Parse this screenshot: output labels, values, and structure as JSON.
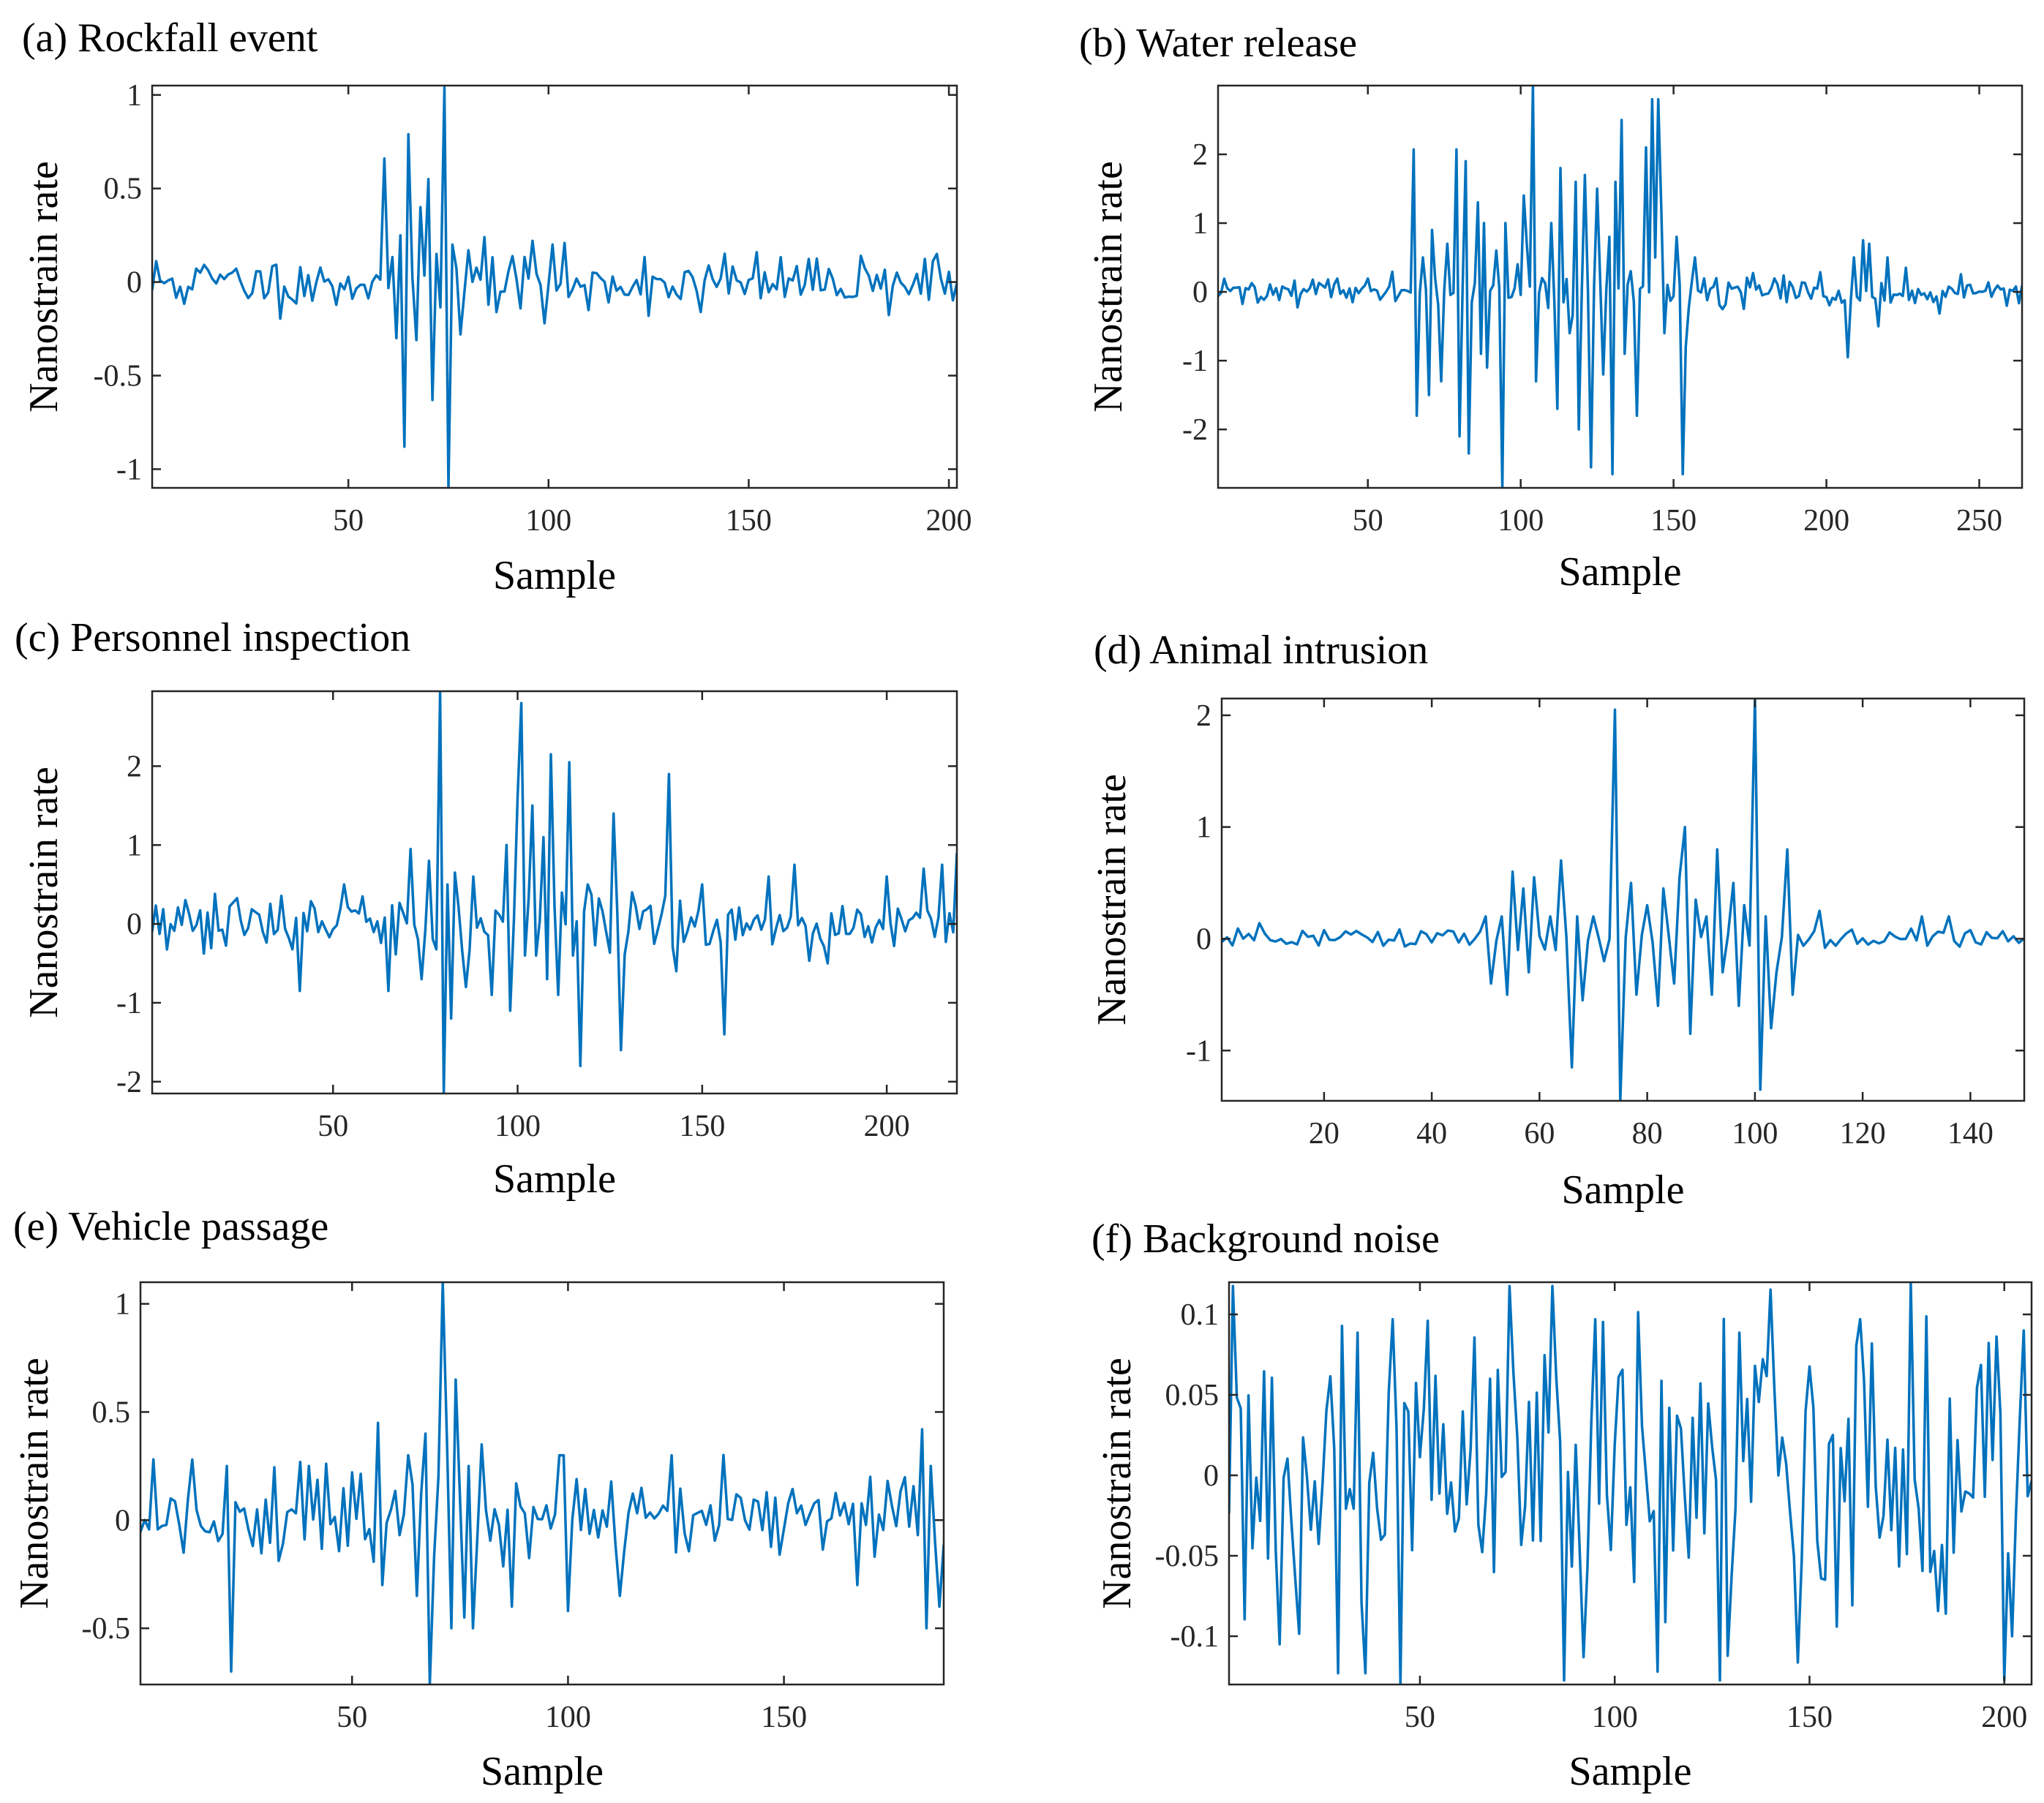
{
  "figure": {
    "line_color": "#0072BD",
    "axis_color": "#262626"
  },
  "chart_data": [
    {
      "type": "line",
      "panel": "a",
      "title": "(a) Rockfall event",
      "xlabel": "Sample",
      "ylabel": "Nanostrain rate",
      "xlim": [
        1,
        202
      ],
      "ylim": [
        -1.1,
        1.05
      ],
      "xticks": [
        50,
        100,
        150,
        200
      ],
      "yticks": [
        -1,
        -0.5,
        0,
        0.5,
        1
      ],
      "ytick_labels": [
        "-1",
        "-0.5",
        "0",
        "0.5",
        "1"
      ],
      "seed": 11,
      "length": 202,
      "noise": 0.08,
      "spikes": [
        [
          59,
          0.66
        ],
        [
          62,
          -0.3
        ],
        [
          63,
          0.25
        ],
        [
          64,
          -0.88
        ],
        [
          65,
          0.79
        ],
        [
          67,
          -0.31
        ],
        [
          68,
          0.4
        ],
        [
          70,
          0.55
        ],
        [
          71,
          -0.63
        ],
        [
          72,
          0.15
        ],
        [
          74,
          1.04
        ],
        [
          75,
          -1.1
        ],
        [
          76,
          0.2
        ],
        [
          78,
          -0.28
        ],
        [
          80,
          0.17
        ],
        [
          84,
          0.24
        ],
        [
          96,
          0.22
        ],
        [
          99,
          -0.22
        ],
        [
          101,
          0.2
        ],
        [
          110,
          -0.15
        ],
        [
          125,
          -0.18
        ],
        [
          138,
          -0.16
        ],
        [
          178,
          0.14
        ],
        [
          197,
          0.15
        ]
      ]
    },
    {
      "type": "line",
      "panel": "b",
      "title": "(b) Water release",
      "xlabel": "Sample",
      "ylabel": "Nanostrain rate",
      "xlim": [
        1,
        264
      ],
      "ylim": [
        -2.85,
        3.0
      ],
      "xticks": [
        50,
        100,
        150,
        200,
        250
      ],
      "yticks": [
        -2,
        -1,
        0,
        1,
        2
      ],
      "ytick_labels": [
        "-2",
        "-1",
        "0",
        "1",
        "2"
      ],
      "seed": 22,
      "length": 264,
      "noise": 0.12,
      "spikes": [
        [
          65,
          2.07
        ],
        [
          66,
          -1.8
        ],
        [
          68,
          0.5
        ],
        [
          70,
          -1.5
        ],
        [
          71,
          0.9
        ],
        [
          74,
          -1.3
        ],
        [
          76,
          0.7
        ],
        [
          79,
          2.07
        ],
        [
          80,
          -2.1
        ],
        [
          82,
          1.9
        ],
        [
          83,
          -2.35
        ],
        [
          86,
          1.3
        ],
        [
          87,
          -0.9
        ],
        [
          88,
          1.0
        ],
        [
          89,
          -1.1
        ],
        [
          92,
          0.6
        ],
        [
          94,
          -2.85
        ],
        [
          95,
          1.0
        ],
        [
          99,
          0.4
        ],
        [
          101,
          1.4
        ],
        [
          102,
          0.7
        ],
        [
          104,
          3.0
        ],
        [
          105,
          -1.3
        ],
        [
          107,
          0.2
        ],
        [
          110,
          1.0
        ],
        [
          112,
          -1.7
        ],
        [
          113,
          1.8
        ],
        [
          116,
          -0.6
        ],
        [
          118,
          1.6
        ],
        [
          119,
          -2.0
        ],
        [
          121,
          1.7
        ],
        [
          123,
          -2.55
        ],
        [
          125,
          1.5
        ],
        [
          127,
          -1.2
        ],
        [
          129,
          0.8
        ],
        [
          130,
          -2.65
        ],
        [
          131,
          1.6
        ],
        [
          133,
          2.5
        ],
        [
          134,
          -0.9
        ],
        [
          136,
          0.3
        ],
        [
          138,
          -1.8
        ],
        [
          141,
          2.1
        ],
        [
          143,
          2.8
        ],
        [
          144,
          0.5
        ],
        [
          145,
          2.8
        ],
        [
          146,
          1.2
        ],
        [
          147,
          -0.6
        ],
        [
          151,
          0.8
        ],
        [
          153,
          -2.65
        ],
        [
          154,
          -0.8
        ],
        [
          157,
          0.5
        ],
        [
          207,
          -0.95
        ],
        [
          209,
          0.5
        ],
        [
          212,
          0.75
        ],
        [
          214,
          0.7
        ],
        [
          217,
          -0.5
        ],
        [
          220,
          0.5
        ],
        [
          226,
          0.35
        ]
      ]
    },
    {
      "type": "line",
      "panel": "c",
      "title": "(c) Personnel inspection",
      "xlabel": "Sample",
      "ylabel": "Nanostrain rate",
      "xlim": [
        1,
        219
      ],
      "ylim": [
        -2.15,
        2.95
      ],
      "xticks": [
        50,
        100,
        150,
        200
      ],
      "yticks": [
        -2,
        -1,
        0,
        1,
        2
      ],
      "ytick_labels": [
        "-2",
        "-1",
        "0",
        "1",
        "2"
      ],
      "seed": 33,
      "length": 219,
      "noise": 0.2,
      "spikes": [
        [
          41,
          -0.85
        ],
        [
          53,
          0.5
        ],
        [
          65,
          -0.85
        ],
        [
          71,
          0.95
        ],
        [
          74,
          -0.7
        ],
        [
          76,
          0.8
        ],
        [
          79,
          2.95
        ],
        [
          80,
          -2.15
        ],
        [
          81,
          0.5
        ],
        [
          82,
          -1.2
        ],
        [
          83,
          0.65
        ],
        [
          86,
          -0.8
        ],
        [
          88,
          0.6
        ],
        [
          93,
          -0.9
        ],
        [
          97,
          1.0
        ],
        [
          98,
          -1.1
        ],
        [
          100,
          1.6
        ],
        [
          101,
          2.8
        ],
        [
          102,
          -0.4
        ],
        [
          104,
          1.5
        ],
        [
          105,
          -0.4
        ],
        [
          107,
          1.1
        ],
        [
          108,
          -0.7
        ],
        [
          109,
          2.15
        ],
        [
          111,
          -0.9
        ],
        [
          114,
          2.05
        ],
        [
          115,
          -0.4
        ],
        [
          117,
          -1.8
        ],
        [
          119,
          0.5
        ],
        [
          126,
          1.4
        ],
        [
          128,
          -1.6
        ],
        [
          131,
          0.4
        ],
        [
          141,
          1.9
        ],
        [
          143,
          -0.6
        ],
        [
          150,
          0.5
        ],
        [
          156,
          -1.4
        ],
        [
          168,
          0.6
        ],
        [
          175,
          0.75
        ],
        [
          184,
          -0.5
        ],
        [
          200,
          0.6
        ],
        [
          210,
          0.7
        ],
        [
          215,
          0.75
        ],
        [
          219,
          0.9
        ]
      ]
    },
    {
      "type": "line",
      "panel": "d",
      "title": "(d) Animal intrusion",
      "xlabel": "Sample",
      "ylabel": "Nanostrain rate",
      "xlim": [
        1,
        150
      ],
      "ylim": [
        -1.45,
        2.15
      ],
      "xticks": [
        20,
        40,
        60,
        80,
        100,
        120,
        140
      ],
      "yticks": [
        -1,
        0,
        1,
        2
      ],
      "ytick_labels": [
        "-1",
        "0",
        "1",
        "2"
      ],
      "seed": 44,
      "length": 150,
      "noise": 0.06,
      "spikes": [
        [
          50,
          0.2
        ],
        [
          51,
          -0.4
        ],
        [
          53,
          0.2
        ],
        [
          54,
          -0.5
        ],
        [
          55,
          0.6
        ],
        [
          56,
          -0.1
        ],
        [
          57,
          0.45
        ],
        [
          58,
          -0.3
        ],
        [
          59,
          0.55
        ],
        [
          62,
          0.2
        ],
        [
          64,
          0.7
        ],
        [
          66,
          -1.15
        ],
        [
          67,
          0.2
        ],
        [
          68,
          -0.55
        ],
        [
          70,
          0.2
        ],
        [
          72,
          -0.2
        ],
        [
          74,
          2.05
        ],
        [
          75,
          -1.45
        ],
        [
          77,
          0.5
        ],
        [
          78,
          -0.5
        ],
        [
          80,
          0.3
        ],
        [
          82,
          -0.6
        ],
        [
          83,
          0.45
        ],
        [
          85,
          -0.4
        ],
        [
          86,
          0.55
        ],
        [
          87,
          1.0
        ],
        [
          88,
          -0.85
        ],
        [
          89,
          0.35
        ],
        [
          91,
          0.2
        ],
        [
          92,
          -0.5
        ],
        [
          93,
          0.8
        ],
        [
          94,
          -0.3
        ],
        [
          96,
          0.5
        ],
        [
          97,
          -0.6
        ],
        [
          98,
          0.3
        ],
        [
          100,
          2.15
        ],
        [
          101,
          -1.35
        ],
        [
          102,
          0.2
        ],
        [
          103,
          -0.8
        ],
        [
          104,
          -0.3
        ],
        [
          106,
          0.8
        ],
        [
          107,
          -0.5
        ],
        [
          112,
          0.25
        ],
        [
          131,
          0.2
        ],
        [
          136,
          0.2
        ]
      ]
    },
    {
      "type": "line",
      "panel": "e",
      "title": "(e) Vehicle passage",
      "xlabel": "Sample",
      "ylabel": "Nanostrain rate",
      "xlim": [
        1,
        187
      ],
      "ylim": [
        -0.76,
        1.1
      ],
      "xticks": [
        50,
        100,
        150
      ],
      "yticks": [
        -0.5,
        0,
        0.5,
        1
      ],
      "ytick_labels": [
        "-0.5",
        "0",
        "0.5",
        "1"
      ],
      "seed": 55,
      "length": 187,
      "noise": 0.12,
      "spikes": [
        [
          13,
          0.28
        ],
        [
          21,
          0.25
        ],
        [
          22,
          -0.7
        ],
        [
          40,
          0.25
        ],
        [
          56,
          0.45
        ],
        [
          57,
          -0.3
        ],
        [
          63,
          0.3
        ],
        [
          65,
          -0.35
        ],
        [
          67,
          0.4
        ],
        [
          68,
          -0.76
        ],
        [
          70,
          0.2
        ],
        [
          71,
          1.1
        ],
        [
          72,
          0.35
        ],
        [
          73,
          -0.5
        ],
        [
          74,
          0.65
        ],
        [
          76,
          -0.45
        ],
        [
          77,
          0.25
        ],
        [
          78,
          -0.5
        ],
        [
          80,
          0.35
        ],
        [
          87,
          -0.4
        ],
        [
          98,
          0.3
        ],
        [
          99,
          0.3
        ],
        [
          100,
          -0.42
        ],
        [
          112,
          -0.35
        ],
        [
          124,
          0.3
        ],
        [
          167,
          -0.3
        ],
        [
          170,
          0.2
        ],
        [
          182,
          0.42
        ],
        [
          183,
          -0.5
        ],
        [
          184,
          0.25
        ],
        [
          186,
          -0.4
        ]
      ]
    },
    {
      "type": "line",
      "panel": "f",
      "title": "(f) Background noise",
      "xlabel": "Sample",
      "ylabel": "Nanostrain rate",
      "xlim": [
        1,
        207
      ],
      "ylim": [
        -0.13,
        0.12
      ],
      "xticks": [
        50,
        100,
        150,
        200
      ],
      "yticks": [
        -0.1,
        -0.05,
        0,
        0.05,
        0.1
      ],
      "ytick_labels": [
        "-0.1",
        "-0.05",
        "0",
        "0.05",
        "0.1"
      ],
      "seed": 66,
      "length": 207,
      "noise": 0.055,
      "spikes": [
        [
          14,
          -0.105
        ],
        [
          29,
          -0.123
        ],
        [
          36,
          -0.123
        ],
        [
          43,
          0.097
        ],
        [
          45,
          -0.13
        ],
        [
          52,
          0.096
        ],
        [
          92,
          -0.113
        ],
        [
          95,
          0.097
        ],
        [
          111,
          -0.122
        ],
        [
          163,
          0.097
        ],
        [
          176,
          0.12
        ],
        [
          202,
          -0.1
        ],
        [
          205,
          0.09
        ]
      ]
    }
  ]
}
